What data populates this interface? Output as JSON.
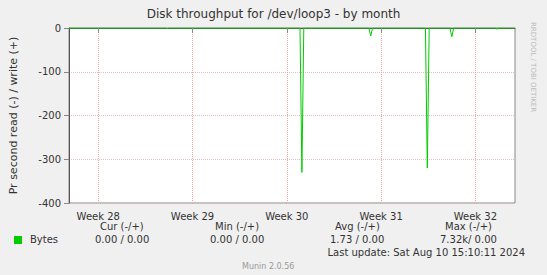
{
  "chart_data": {
    "type": "line",
    "title": "Disk throughput for /dev/loop3 - by month",
    "y_label": "Pr second read (-) / write (+)",
    "x": [
      28.19,
      29.22,
      29.23,
      29.24,
      30.64,
      30.66,
      30.68,
      31.37,
      31.39,
      31.41,
      31.97,
      31.99,
      32.01,
      32.23,
      32.25,
      32.27,
      32.72,
      32.73,
      32.74,
      32.92
    ],
    "series": [
      {
        "name": "Bytes",
        "color": "#00cc00",
        "values": [
          0,
          0,
          -2,
          0,
          0,
          -330,
          0,
          0,
          -18,
          0,
          0,
          -320,
          0,
          0,
          -20,
          0,
          0,
          -3,
          0,
          0
        ],
        "stats": [
          "0.00 / 0.00",
          "0.00 / 0.00",
          "1.73 / 0.00",
          "7.32k/ 0.00"
        ]
      }
    ],
    "stats_headers": [
      "Cur (-/+)",
      "Min (-/+)",
      "Avg (-/+)",
      "Max (-/+)"
    ],
    "xlim": [
      28.19,
      32.92
    ],
    "xticks": [
      {
        "value": 28.5,
        "label": "Week 28"
      },
      {
        "value": 29.5,
        "label": "Week 29"
      },
      {
        "value": 30.5,
        "label": "Week 30"
      },
      {
        "value": 31.5,
        "label": "Week 31"
      },
      {
        "value": 32.5,
        "label": "Week 32"
      }
    ],
    "ylim": [
      -400,
      0
    ],
    "yticks": [
      -400,
      -300,
      -200,
      -100,
      0
    ],
    "grid": true,
    "annotations": [
      "Last update: Sat Aug 10 15:10:11 2024",
      "Munin 2.0.56",
      "RRDTOOL / TOBI OETIKER"
    ]
  }
}
